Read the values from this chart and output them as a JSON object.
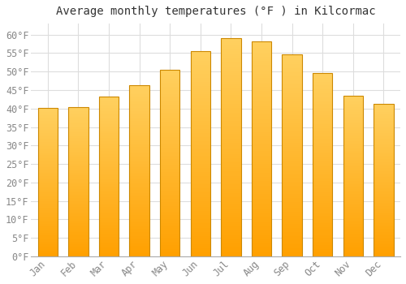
{
  "title": "Average monthly temperatures (°F ) in Kilcormac",
  "months": [
    "Jan",
    "Feb",
    "Mar",
    "Apr",
    "May",
    "Jun",
    "Jul",
    "Aug",
    "Sep",
    "Oct",
    "Nov",
    "Dec"
  ],
  "values": [
    40.2,
    40.5,
    43.2,
    46.3,
    50.5,
    55.6,
    59.0,
    58.1,
    54.7,
    49.7,
    43.4,
    41.2
  ],
  "bar_color_top": "#FFD060",
  "bar_color_bottom": "#FFA000",
  "bar_edge_color": "#CC8800",
  "background_color": "#FFFFFF",
  "grid_color": "#DDDDDD",
  "text_color": "#888888",
  "title_color": "#333333",
  "ylim": [
    0,
    63
  ],
  "yticks": [
    0,
    5,
    10,
    15,
    20,
    25,
    30,
    35,
    40,
    45,
    50,
    55,
    60
  ],
  "title_fontsize": 10,
  "tick_fontsize": 8.5,
  "bar_width": 0.65
}
